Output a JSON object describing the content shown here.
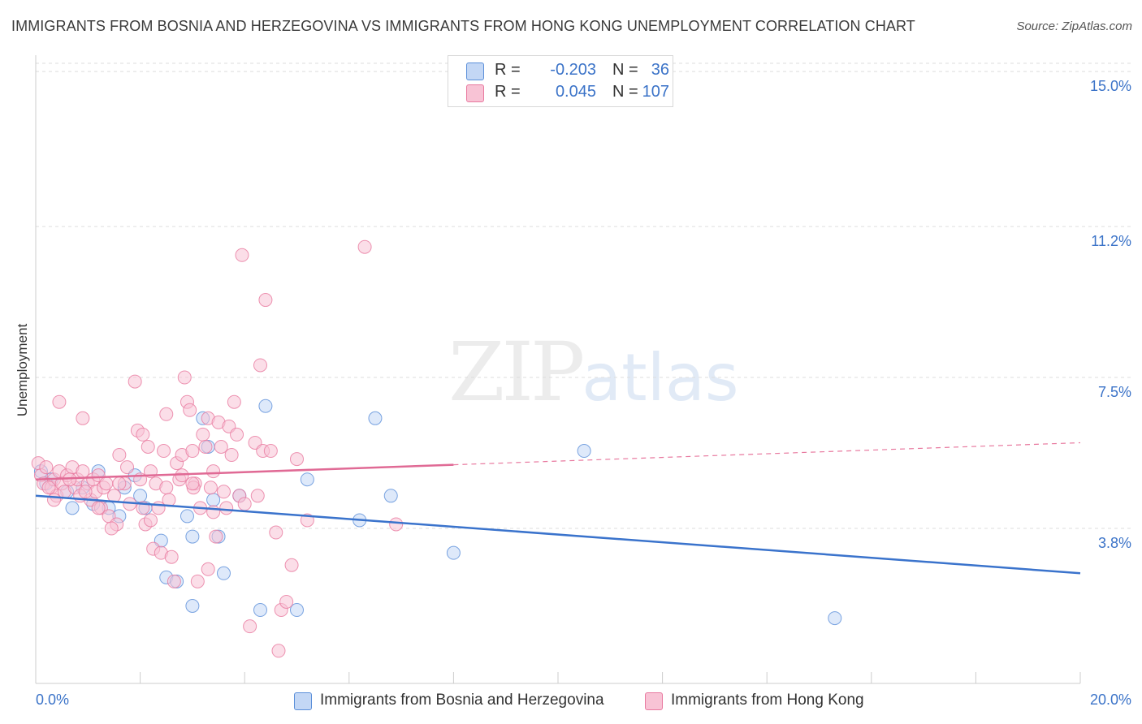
{
  "chart_data": {
    "type": "scatter",
    "title": "IMMIGRANTS FROM BOSNIA AND HERZEGOVINA VS IMMIGRANTS FROM HONG KONG UNEMPLOYMENT CORRELATION CHART",
    "source": "Source: ZipAtlas.com",
    "ylabel": "Unemployment",
    "xlabel": "",
    "x_tick_labels": [
      "0.0%",
      "20.0%"
    ],
    "y_tick_labels": [
      "15.0%",
      "11.2%",
      "7.5%",
      "3.8%"
    ],
    "y_ticks": [
      15.0,
      11.2,
      7.5,
      3.8
    ],
    "xlim": [
      0,
      20
    ],
    "ylim": [
      0,
      15.4
    ],
    "grid": "horizontal dashed",
    "legend_placement": "top-center",
    "watermark": "ZIPatlas",
    "series": [
      {
        "name": "Immigrants from Bosnia and Herzegovina",
        "color": "#5b8fd9",
        "fill": "#c3d7f5",
        "R": "-0.203",
        "N": "36",
        "trend": {
          "x0": 0,
          "y0": 4.6,
          "x1": 20,
          "y1": 2.7,
          "solid_until": 20
        },
        "points": [
          [
            0.1,
            5.2
          ],
          [
            0.3,
            5.0
          ],
          [
            0.6,
            4.7
          ],
          [
            0.7,
            4.3
          ],
          [
            0.9,
            4.8
          ],
          [
            1.1,
            4.4
          ],
          [
            1.2,
            5.2
          ],
          [
            1.4,
            4.3
          ],
          [
            1.6,
            4.1
          ],
          [
            1.7,
            4.8
          ],
          [
            1.9,
            5.1
          ],
          [
            2.0,
            4.6
          ],
          [
            2.1,
            4.3
          ],
          [
            2.4,
            3.5
          ],
          [
            2.5,
            2.6
          ],
          [
            2.7,
            2.5
          ],
          [
            2.9,
            4.1
          ],
          [
            3.0,
            3.6
          ],
          [
            3.0,
            1.9
          ],
          [
            3.2,
            6.5
          ],
          [
            3.3,
            5.8
          ],
          [
            3.4,
            4.5
          ],
          [
            3.5,
            3.6
          ],
          [
            3.6,
            2.7
          ],
          [
            3.9,
            4.6
          ],
          [
            4.4,
            6.8
          ],
          [
            4.3,
            1.8
          ],
          [
            5.0,
            1.8
          ],
          [
            5.2,
            5.0
          ],
          [
            6.2,
            4.0
          ],
          [
            6.5,
            6.5
          ],
          [
            6.8,
            4.6
          ],
          [
            8.0,
            3.2
          ],
          [
            10.5,
            5.7
          ],
          [
            15.3,
            1.6
          ],
          [
            0.2,
            4.9
          ]
        ]
      },
      {
        "name": "Immigrants from Hong Kong",
        "color": "#e8799f",
        "fill": "#f8c3d5",
        "R": "0.045",
        "N": "107",
        "trend": {
          "x0": 0,
          "y0": 5.0,
          "x1": 20,
          "y1": 5.9,
          "solid_until": 8
        },
        "points": [
          [
            0.05,
            5.4
          ],
          [
            0.1,
            5.1
          ],
          [
            0.15,
            4.9
          ],
          [
            0.2,
            5.3
          ],
          [
            0.3,
            4.8
          ],
          [
            0.35,
            5.0
          ],
          [
            0.4,
            4.6
          ],
          [
            0.45,
            5.2
          ],
          [
            0.5,
            4.9
          ],
          [
            0.55,
            4.7
          ],
          [
            0.6,
            5.1
          ],
          [
            0.7,
            5.3
          ],
          [
            0.75,
            4.8
          ],
          [
            0.8,
            5.0
          ],
          [
            0.85,
            4.6
          ],
          [
            0.9,
            5.2
          ],
          [
            1.0,
            4.9
          ],
          [
            1.05,
            4.5
          ],
          [
            1.1,
            5.0
          ],
          [
            1.15,
            4.7
          ],
          [
            1.2,
            5.1
          ],
          [
            1.25,
            4.3
          ],
          [
            1.3,
            4.8
          ],
          [
            1.4,
            4.1
          ],
          [
            1.5,
            4.6
          ],
          [
            1.55,
            3.9
          ],
          [
            1.6,
            5.6
          ],
          [
            1.7,
            4.9
          ],
          [
            1.8,
            4.4
          ],
          [
            1.9,
            7.4
          ],
          [
            1.95,
            6.2
          ],
          [
            2.0,
            5.0
          ],
          [
            2.05,
            4.3
          ],
          [
            2.1,
            3.9
          ],
          [
            2.15,
            5.8
          ],
          [
            2.2,
            5.2
          ],
          [
            2.25,
            3.3
          ],
          [
            2.3,
            4.9
          ],
          [
            2.35,
            4.3
          ],
          [
            2.4,
            3.2
          ],
          [
            2.45,
            5.7
          ],
          [
            2.5,
            4.8
          ],
          [
            2.55,
            4.5
          ],
          [
            2.6,
            3.1
          ],
          [
            2.65,
            2.5
          ],
          [
            2.7,
            5.4
          ],
          [
            2.75,
            5.0
          ],
          [
            2.8,
            5.6
          ],
          [
            2.85,
            7.5
          ],
          [
            2.9,
            6.9
          ],
          [
            2.95,
            6.7
          ],
          [
            3.0,
            5.7
          ],
          [
            3.05,
            4.9
          ],
          [
            3.1,
            2.5
          ],
          [
            3.15,
            4.3
          ],
          [
            3.2,
            6.1
          ],
          [
            3.25,
            5.8
          ],
          [
            3.3,
            6.5
          ],
          [
            3.35,
            4.8
          ],
          [
            3.4,
            5.2
          ],
          [
            3.45,
            3.6
          ],
          [
            3.5,
            6.4
          ],
          [
            3.55,
            5.8
          ],
          [
            3.6,
            4.7
          ],
          [
            3.65,
            4.3
          ],
          [
            3.7,
            6.3
          ],
          [
            3.75,
            5.6
          ],
          [
            3.8,
            6.9
          ],
          [
            3.9,
            4.6
          ],
          [
            3.95,
            10.5
          ],
          [
            4.0,
            4.4
          ],
          [
            4.1,
            1.4
          ],
          [
            4.2,
            5.9
          ],
          [
            4.3,
            7.8
          ],
          [
            4.35,
            5.7
          ],
          [
            4.4,
            9.4
          ],
          [
            4.5,
            5.7
          ],
          [
            4.6,
            3.7
          ],
          [
            4.65,
            0.8
          ],
          [
            4.7,
            1.8
          ],
          [
            4.8,
            2.0
          ],
          [
            4.9,
            2.9
          ],
          [
            5.0,
            5.5
          ],
          [
            5.2,
            4.0
          ],
          [
            6.3,
            10.7
          ],
          [
            6.9,
            3.9
          ],
          [
            0.25,
            4.8
          ],
          [
            0.65,
            5.0
          ],
          [
            0.95,
            4.7
          ],
          [
            1.35,
            4.9
          ],
          [
            1.45,
            3.8
          ],
          [
            1.75,
            5.3
          ],
          [
            2.05,
            6.1
          ],
          [
            3.02,
            4.8
          ],
          [
            3.3,
            2.8
          ],
          [
            4.25,
            4.6
          ],
          [
            0.45,
            6.9
          ],
          [
            0.9,
            6.5
          ],
          [
            1.2,
            4.3
          ],
          [
            1.6,
            4.9
          ],
          [
            2.2,
            4.0
          ],
          [
            2.5,
            6.6
          ],
          [
            2.8,
            5.1
          ],
          [
            3.0,
            4.9
          ],
          [
            3.4,
            4.2
          ],
          [
            3.85,
            6.1
          ],
          [
            0.35,
            4.5
          ]
        ]
      }
    ]
  }
}
